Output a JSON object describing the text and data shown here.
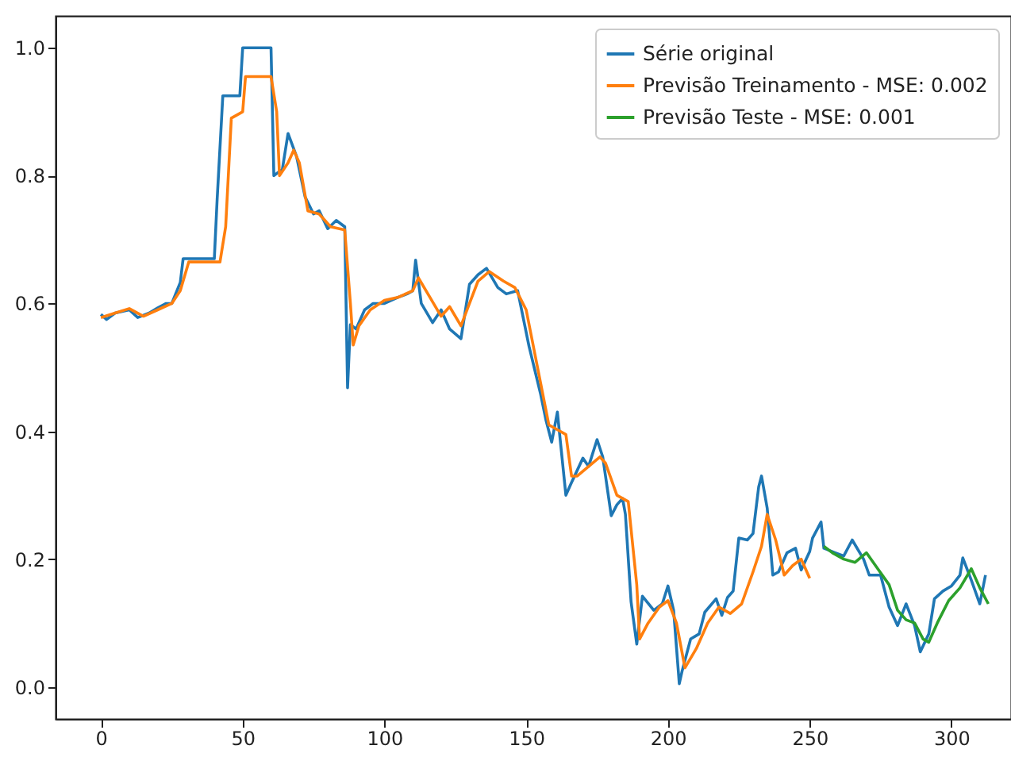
{
  "chart_data": {
    "type": "line",
    "xlim": [
      -16,
      321
    ],
    "ylim": [
      -0.05,
      1.05
    ],
    "xticks": [
      0,
      50,
      100,
      150,
      200,
      250,
      300
    ],
    "yticks": [
      {
        "value": 0,
        "label": "0.0"
      },
      {
        "value": 0.2,
        "label": "0.2"
      },
      {
        "value": 0.4,
        "label": "0.4"
      },
      {
        "value": 0.6,
        "label": "0.6"
      },
      {
        "value": 0.8,
        "label": "0.8"
      },
      {
        "value": 1,
        "label": "1.0"
      }
    ],
    "legend": "top right",
    "series": [
      {
        "name": "Série original",
        "color": "#1f77b4",
        "x": [
          0,
          2,
          5,
          10,
          13,
          17,
          20,
          23,
          25,
          28,
          29,
          40,
          41,
          43,
          49,
          50,
          60,
          61,
          64,
          66,
          69,
          72,
          75,
          77,
          80,
          83,
          86,
          87,
          88,
          90,
          93,
          96,
          100,
          105,
          108,
          110,
          111,
          113,
          117,
          120,
          123,
          127,
          130,
          133,
          136,
          140,
          143,
          147,
          151,
          155,
          157,
          159,
          161,
          164,
          166,
          170,
          172,
          175,
          177,
          180,
          182,
          184,
          185,
          187,
          189,
          191,
          195,
          198,
          200,
          202,
          204,
          205,
          208,
          211,
          213,
          217,
          219,
          221,
          223,
          225,
          228,
          230,
          232,
          233,
          235,
          237,
          239,
          242,
          245,
          247,
          250,
          251,
          254,
          255,
          259,
          262,
          265,
          269,
          271,
          275,
          278,
          281,
          284,
          287,
          289,
          292,
          294,
          297,
          300,
          303,
          304,
          307,
          310,
          312
        ],
        "values": [
          0.583,
          0.575,
          0.585,
          0.59,
          0.578,
          0.585,
          0.593,
          0.6,
          0.6,
          0.633,
          0.67,
          0.67,
          0.763,
          0.925,
          0.925,
          1.0,
          1.0,
          0.8,
          0.81,
          0.866,
          0.83,
          0.767,
          0.74,
          0.745,
          0.717,
          0.73,
          0.72,
          0.468,
          0.567,
          0.56,
          0.59,
          0.6,
          0.6,
          0.61,
          0.615,
          0.62,
          0.668,
          0.6,
          0.57,
          0.59,
          0.56,
          0.545,
          0.63,
          0.645,
          0.655,
          0.625,
          0.615,
          0.62,
          0.533,
          0.46,
          0.417,
          0.383,
          0.43,
          0.3,
          0.32,
          0.358,
          0.345,
          0.387,
          0.36,
          0.268,
          0.285,
          0.295,
          0.27,
          0.133,
          0.067,
          0.142,
          0.12,
          0.13,
          0.158,
          0.12,
          0.005,
          0.025,
          0.075,
          0.083,
          0.117,
          0.138,
          0.112,
          0.14,
          0.15,
          0.233,
          0.23,
          0.24,
          0.313,
          0.33,
          0.28,
          0.175,
          0.18,
          0.21,
          0.217,
          0.183,
          0.212,
          0.233,
          0.258,
          0.217,
          0.21,
          0.205,
          0.23,
          0.2,
          0.175,
          0.175,
          0.125,
          0.096,
          0.13,
          0.096,
          0.055,
          0.083,
          0.138,
          0.15,
          0.158,
          0.175,
          0.202,
          0.167,
          0.13,
          0.175
        ]
      },
      {
        "name": "Previsão Treinamento - MSE: 0.002",
        "color": "#ff7f0e",
        "x": [
          0,
          5,
          10,
          15,
          20,
          25,
          28,
          31,
          42,
          44,
          46,
          48,
          50,
          51,
          60,
          62,
          63,
          66,
          68,
          70,
          73,
          77,
          81,
          86,
          88,
          89,
          91,
          95,
          100,
          105,
          110,
          112,
          116,
          120,
          123,
          127,
          130,
          133,
          137,
          142,
          146,
          150,
          154,
          158,
          162,
          164,
          166,
          168,
          172,
          176,
          178,
          182,
          186,
          189,
          190,
          193,
          197,
          200,
          203,
          206,
          210,
          214,
          218,
          222,
          226,
          230,
          233,
          235,
          238,
          241,
          244,
          247,
          250
        ],
        "values": [
          0.578,
          0.585,
          0.592,
          0.58,
          0.59,
          0.6,
          0.62,
          0.665,
          0.665,
          0.72,
          0.89,
          0.895,
          0.9,
          0.955,
          0.955,
          0.9,
          0.8,
          0.82,
          0.84,
          0.82,
          0.745,
          0.74,
          0.72,
          0.715,
          0.6,
          0.535,
          0.565,
          0.59,
          0.605,
          0.61,
          0.62,
          0.64,
          0.61,
          0.58,
          0.595,
          0.565,
          0.6,
          0.635,
          0.65,
          0.635,
          0.625,
          0.59,
          0.5,
          0.41,
          0.4,
          0.395,
          0.33,
          0.33,
          0.345,
          0.36,
          0.35,
          0.3,
          0.29,
          0.16,
          0.075,
          0.1,
          0.125,
          0.135,
          0.1,
          0.03,
          0.06,
          0.1,
          0.125,
          0.115,
          0.13,
          0.18,
          0.22,
          0.27,
          0.23,
          0.175,
          0.19,
          0.2,
          0.17
        ]
      },
      {
        "name": "Previsão Teste - MSE: 0.001",
        "color": "#2ca02c",
        "x": [
          255,
          258,
          262,
          266,
          270,
          274,
          278,
          281,
          284,
          287,
          290,
          292,
          295,
          299,
          303,
          307,
          310,
          313
        ],
        "values": [
          0.22,
          0.21,
          0.2,
          0.195,
          0.21,
          0.185,
          0.16,
          0.12,
          0.105,
          0.1,
          0.075,
          0.07,
          0.1,
          0.135,
          0.155,
          0.185,
          0.155,
          0.13
        ]
      }
    ]
  }
}
